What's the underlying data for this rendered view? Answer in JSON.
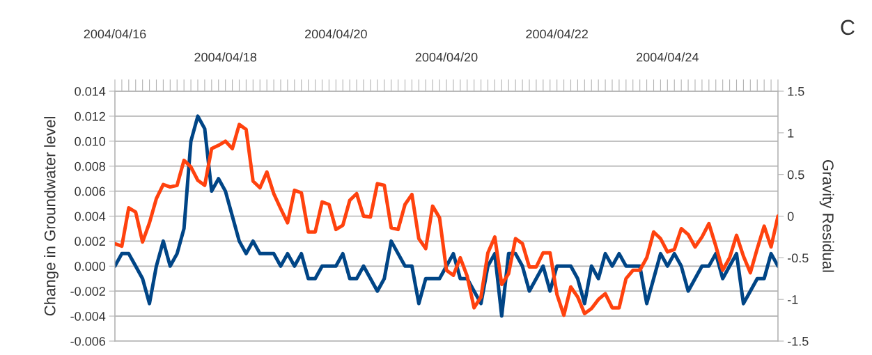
{
  "chart_data": {
    "type": "line",
    "ylabel": "Change in Groundwater level",
    "y2label": "Gravity Residual",
    "annotations": [
      "C"
    ],
    "categories": [
      "2004/04/16",
      null,
      null,
      null,
      null,
      null,
      null,
      null,
      null,
      null,
      null,
      null,
      null,
      null,
      null,
      null,
      "2004/04/18",
      null,
      null,
      null,
      null,
      null,
      null,
      null,
      null,
      null,
      null,
      null,
      null,
      null,
      null,
      null,
      "2004/04/20",
      null,
      null,
      null,
      null,
      null,
      null,
      null,
      null,
      null,
      null,
      null,
      null,
      null,
      null,
      null,
      "2004/04/20",
      null,
      null,
      null,
      null,
      null,
      null,
      null,
      null,
      null,
      null,
      null,
      null,
      null,
      null,
      null,
      "2004/04/22",
      null,
      null,
      null,
      null,
      null,
      null,
      null,
      null,
      null,
      null,
      null,
      null,
      null,
      null,
      null,
      "2004/04/24",
      null,
      null,
      null,
      null,
      null,
      null,
      null,
      null,
      null,
      null,
      null,
      null,
      null,
      null,
      null,
      null
    ],
    "series": [
      {
        "color": "#004586",
        "values": [
          0.0,
          0.001,
          0.001,
          0.0,
          -0.001,
          -0.003,
          0.0,
          0.002,
          0.0,
          0.001,
          0.003,
          0.01,
          0.012,
          0.011,
          0.006,
          0.007,
          0.006,
          0.004,
          0.002,
          0.001,
          0.002,
          0.001,
          0.001,
          0.001,
          0.0,
          0.001,
          0.0,
          0.001,
          -0.001,
          -0.001,
          0.0,
          0.0,
          0.0,
          0.001,
          -0.001,
          -0.001,
          0.0,
          -0.001,
          -0.002,
          -0.001,
          0.002,
          0.001,
          0.0,
          0.0,
          -0.003,
          -0.001,
          -0.001,
          -0.001,
          0.0,
          0.001,
          -0.001,
          -0.001,
          -0.002,
          -0.003,
          0.0,
          0.001,
          -0.004,
          0.001,
          0.001,
          0.0,
          -0.002,
          -0.001,
          0.0,
          -0.002,
          0.0,
          0.0,
          0.0,
          -0.001,
          -0.003,
          0.0,
          -0.001,
          0.001,
          0.0,
          0.001,
          0.0,
          0.0,
          0.0,
          -0.003,
          -0.001,
          0.001,
          0.0,
          0.001,
          0.0,
          -0.002,
          -0.001,
          0.0,
          0.0,
          0.001,
          -0.001,
          0.0,
          0.001,
          -0.003,
          -0.002,
          -0.001,
          -0.001,
          0.001,
          0.0
        ]
      },
      {
        "color": "#ff420e",
        "axis": "y2",
        "values": [
          -0.33,
          -0.36,
          0.1,
          0.05,
          -0.31,
          -0.08,
          0.21,
          0.38,
          0.35,
          0.37,
          0.67,
          0.59,
          0.43,
          0.37,
          0.81,
          0.85,
          0.9,
          0.81,
          1.1,
          1.04,
          0.42,
          0.34,
          0.53,
          0.27,
          0.09,
          -0.08,
          0.31,
          0.28,
          -0.19,
          -0.19,
          0.17,
          0.14,
          -0.16,
          -0.11,
          0.19,
          0.27,
          0.0,
          -0.01,
          0.39,
          0.37,
          -0.14,
          -0.16,
          0.14,
          0.26,
          -0.27,
          -0.39,
          0.12,
          -0.02,
          -0.65,
          -0.71,
          -0.5,
          -0.72,
          -1.1,
          -0.97,
          -0.44,
          -0.25,
          -0.82,
          -0.69,
          -0.27,
          -0.33,
          -0.61,
          -0.61,
          -0.44,
          -0.44,
          -0.94,
          -1.19,
          -0.85,
          -0.97,
          -1.17,
          -1.11,
          -1.0,
          -0.93,
          -1.1,
          -1.1,
          -0.75,
          -0.65,
          -0.65,
          -0.5,
          -0.19,
          -0.27,
          -0.43,
          -0.4,
          -0.15,
          -0.22,
          -0.37,
          -0.25,
          -0.09,
          -0.36,
          -0.65,
          -0.5,
          -0.23,
          -0.48,
          -0.68,
          -0.39,
          -0.12,
          -0.37,
          0.0
        ]
      }
    ],
    "ylim": [
      -0.006,
      0.014
    ],
    "yticks": [
      {
        "value": -0.006,
        "label": "-0.006"
      },
      {
        "value": -0.004,
        "label": "-0.004"
      },
      {
        "value": -0.002,
        "label": "-0.002"
      },
      {
        "value": 0,
        "label": "0.000"
      },
      {
        "value": 0.002,
        "label": "0.002"
      },
      {
        "value": 0.004,
        "label": "0.004"
      },
      {
        "value": 0.006,
        "label": "0.006"
      },
      {
        "value": 0.008,
        "label": "0.008"
      },
      {
        "value": 0.01,
        "label": "0.010"
      },
      {
        "value": 0.012,
        "label": "0.012"
      },
      {
        "value": 0.014,
        "label": "0.014"
      }
    ],
    "y2lim": [
      -1.5,
      1.5
    ],
    "y2ticks": [
      -1.5,
      -1,
      -0.5,
      0,
      0.5,
      1,
      1.5
    ],
    "grid": "y",
    "legend": false,
    "marker": "none",
    "line_style": "solid"
  }
}
